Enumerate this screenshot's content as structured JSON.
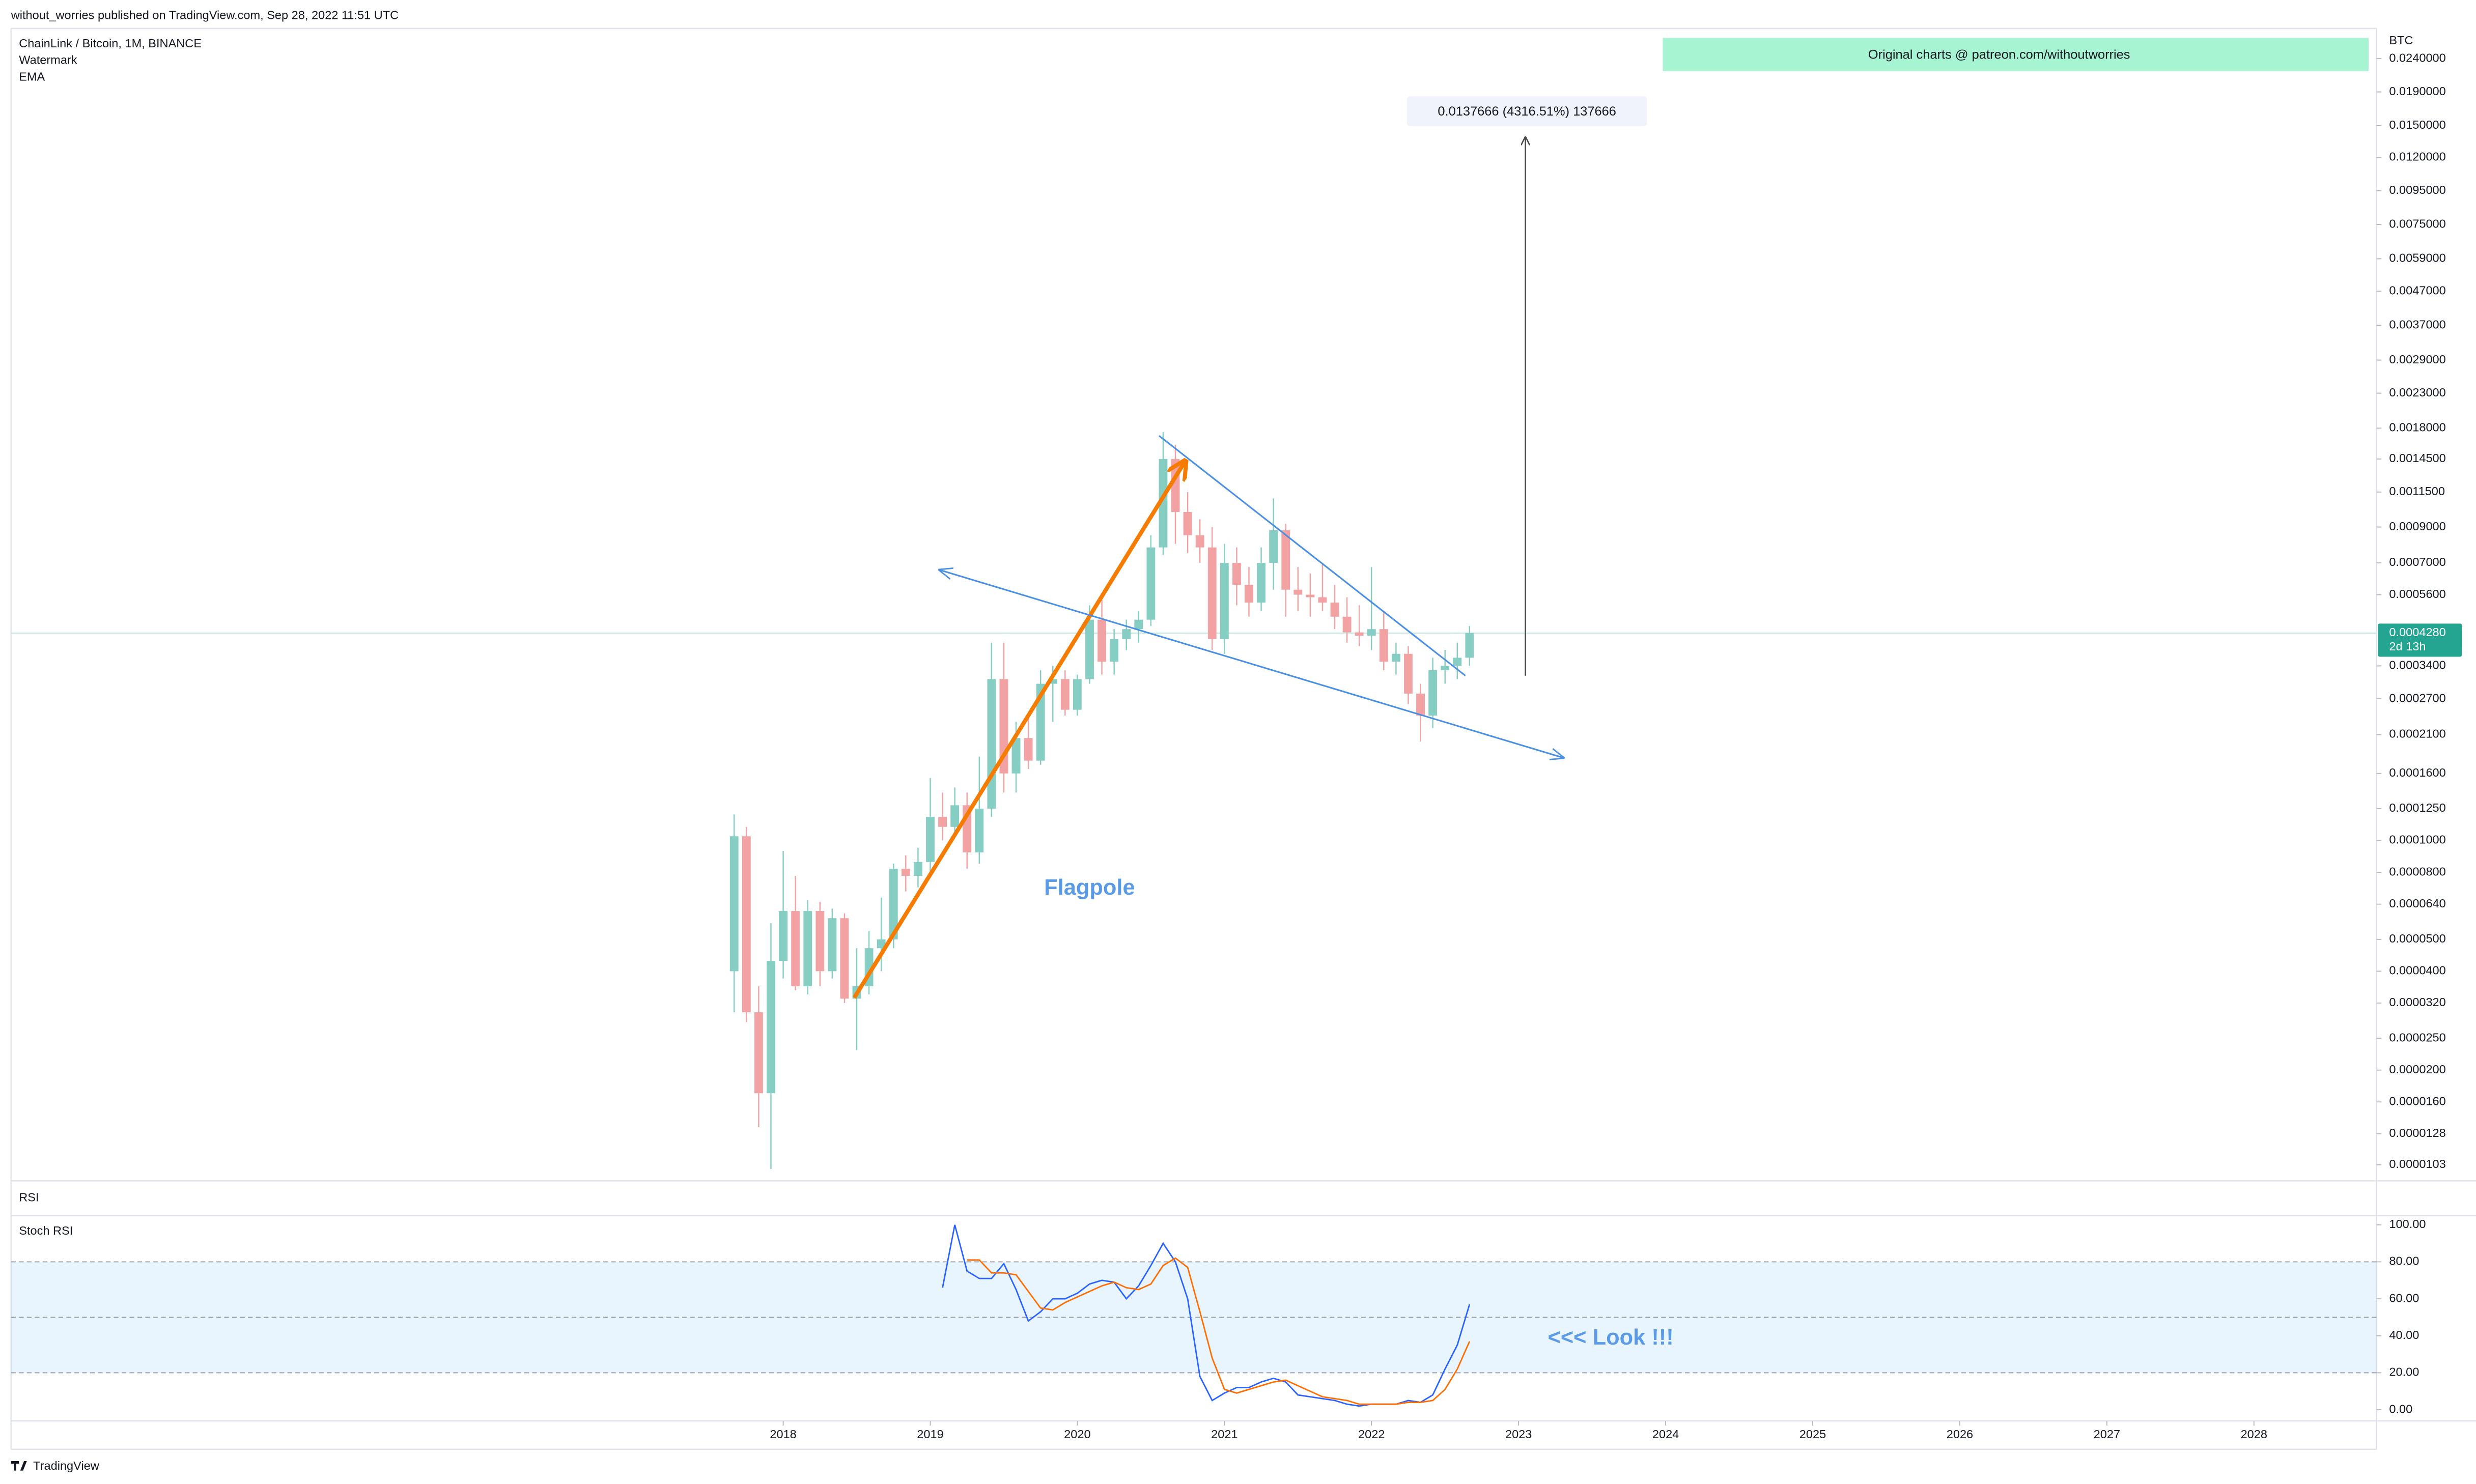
{
  "header": {
    "publisher": "without_worries published on TradingView.com, Sep 28, 2022 11:51 UTC",
    "footer": "TradingView"
  },
  "chart_data": [
    {
      "type": "candlestick",
      "title": "ChainLink / Bitcoin, 1M, BINANCE",
      "indicators": [
        "Watermark",
        "EMA"
      ],
      "axis_label": "BTC",
      "x": [
        "2017-09",
        "2017-10",
        "2017-11",
        "2017-12",
        "2018-01",
        "2018-02",
        "2018-03",
        "2018-04",
        "2018-05",
        "2018-06",
        "2018-07",
        "2018-08",
        "2018-09",
        "2018-10",
        "2018-11",
        "2018-12",
        "2019-01",
        "2019-02",
        "2019-03",
        "2019-04",
        "2019-05",
        "2019-06",
        "2019-07",
        "2019-08",
        "2019-09",
        "2019-10",
        "2019-11",
        "2019-12",
        "2020-01",
        "2020-02",
        "2020-03",
        "2020-04",
        "2020-05",
        "2020-06",
        "2020-07",
        "2020-08",
        "2020-09",
        "2020-10",
        "2020-11",
        "2020-12",
        "2021-01",
        "2021-02",
        "2021-03",
        "2021-04",
        "2021-05",
        "2021-06",
        "2021-07",
        "2021-08",
        "2021-09",
        "2021-10",
        "2021-11",
        "2021-12",
        "2022-01",
        "2022-02",
        "2022-03",
        "2022-04",
        "2022-05",
        "2022-06",
        "2022-07",
        "2022-08",
        "2022-09"
      ],
      "open": [
        4e-05,
        0.000103,
        3e-05,
        1.7e-05,
        4.3e-05,
        6.1e-05,
        3.6e-05,
        6.1e-05,
        4e-05,
        5.8e-05,
        3.3e-05,
        3.6e-05,
        4.7e-05,
        5e-05,
        8.2e-05,
        7.8e-05,
        8.6e-05,
        0.000118,
        0.00011,
        0.000128,
        9.2e-05,
        0.000125,
        0.00031,
        0.00016,
        0.000205,
        0.000175,
        0.0003,
        0.00031,
        0.00025,
        0.00031,
        0.00047,
        0.00035,
        0.00041,
        0.00044,
        0.00047,
        0.00078,
        0.00145,
        0.001,
        0.00085,
        0.00078,
        0.00041,
        0.0007,
        0.0006,
        0.00053,
        0.0007,
        0.00088,
        0.00058,
        0.00056,
        0.00055,
        0.00053,
        0.00048,
        0.00043,
        0.00042,
        0.00044,
        0.00035,
        0.00037,
        0.00028,
        0.00024,
        0.00033,
        0.00034,
        0.00036
      ],
      "high": [
        0.00012,
        0.00011,
        3.6e-05,
        5.6e-05,
        9.3e-05,
        7.8e-05,
        6.6e-05,
        6.5e-05,
        6.2e-05,
        6e-05,
        4.7e-05,
        5.3e-05,
        6.7e-05,
        8.5e-05,
        9e-05,
        9.5e-05,
        0.000155,
        0.00014,
        0.000145,
        0.00014,
        0.00018,
        0.0004,
        0.0004,
        0.00023,
        0.000235,
        0.00033,
        0.00034,
        0.00033,
        0.00032,
        0.00052,
        0.00054,
        0.00044,
        0.00047,
        0.0005,
        0.00085,
        0.00175,
        0.0016,
        0.00115,
        0.00095,
        0.0009,
        0.0008,
        0.00078,
        0.00068,
        0.00078,
        0.0011,
        0.00092,
        0.00068,
        0.00065,
        0.0007,
        0.0006,
        0.00055,
        0.00052,
        0.00068,
        0.0005,
        0.0004,
        0.00039,
        0.0003,
        0.00036,
        0.00038,
        0.0004,
        0.00045
      ],
      "low": [
        3e-05,
        2.8e-05,
        1.34e-05,
        1e-05,
        3.8e-05,
        3.5e-05,
        3.4e-05,
        3.6e-05,
        3.8e-05,
        3.2e-05,
        2.3e-05,
        3.4e-05,
        4e-05,
        4.7e-05,
        7e-05,
        7.2e-05,
        8e-05,
        0.0001,
        0.000105,
        8.2e-05,
        8.5e-05,
        0.000118,
        0.00014,
        0.00014,
        0.000165,
        0.00017,
        0.00023,
        0.00024,
        0.00024,
        0.0003,
        0.00032,
        0.00032,
        0.00038,
        0.0004,
        0.00045,
        0.00074,
        0.0008,
        0.00075,
        0.0007,
        0.00038,
        0.00037,
        0.00052,
        0.00048,
        0.0005,
        0.00058,
        0.00048,
        0.0005,
        0.00048,
        0.0005,
        0.00044,
        0.0004,
        0.00039,
        0.00038,
        0.00033,
        0.00032,
        0.00026,
        0.0002,
        0.00022,
        0.0003,
        0.00031,
        0.00034
      ],
      "close": [
        0.000103,
        3e-05,
        1.7e-05,
        4.3e-05,
        6.1e-05,
        3.6e-05,
        6.1e-05,
        4e-05,
        5.8e-05,
        3.3e-05,
        3.6e-05,
        4.7e-05,
        5e-05,
        8.2e-05,
        7.8e-05,
        8.6e-05,
        0.000118,
        0.00011,
        0.000128,
        9.2e-05,
        0.000125,
        0.00031,
        0.00016,
        0.000205,
        0.000175,
        0.0003,
        0.00031,
        0.00025,
        0.00031,
        0.00047,
        0.00035,
        0.00041,
        0.00044,
        0.00047,
        0.00078,
        0.00145,
        0.001,
        0.00085,
        0.00078,
        0.00041,
        0.0007,
        0.0006,
        0.00053,
        0.0007,
        0.00088,
        0.00058,
        0.00056,
        0.00055,
        0.00053,
        0.00048,
        0.00043,
        0.00042,
        0.00044,
        0.00035,
        0.00037,
        0.00028,
        0.00024,
        0.00033,
        0.00034,
        0.00036,
        0.000428
      ],
      "up_color": "#86cec3",
      "down_color": "#f2a2a2",
      "log_scale": true,
      "ylim": [
        9.2e-06,
        0.029
      ],
      "yticks": [
        {
          "value": 0.024,
          "label": "0.0240000"
        },
        {
          "value": 0.019,
          "label": "0.0190000"
        },
        {
          "value": 0.015,
          "label": "0.0150000"
        },
        {
          "value": 0.012,
          "label": "0.0120000"
        },
        {
          "value": 0.0095,
          "label": "0.0095000"
        },
        {
          "value": 0.0075,
          "label": "0.0075000"
        },
        {
          "value": 0.0059,
          "label": "0.0059000"
        },
        {
          "value": 0.0047,
          "label": "0.0047000"
        },
        {
          "value": 0.0037,
          "label": "0.0037000"
        },
        {
          "value": 0.0029,
          "label": "0.0029000"
        },
        {
          "value": 0.0023,
          "label": "0.0023000"
        },
        {
          "value": 0.0018,
          "label": "0.0018000"
        },
        {
          "value": 0.00145,
          "label": "0.0014500"
        },
        {
          "value": 0.00115,
          "label": "0.0011500"
        },
        {
          "value": 0.0009,
          "label": "0.0009000"
        },
        {
          "value": 0.0007,
          "label": "0.0007000"
        },
        {
          "value": 0.00056,
          "label": "0.0005600"
        },
        {
          "value": 0.00034,
          "label": "0.0003400"
        },
        {
          "value": 0.00027,
          "label": "0.0002700"
        },
        {
          "value": 0.00021,
          "label": "0.0002100"
        },
        {
          "value": 0.00016,
          "label": "0.0001600"
        },
        {
          "value": 0.000125,
          "label": "0.0001250"
        },
        {
          "value": 0.0001,
          "label": "0.0001000"
        },
        {
          "value": 8e-05,
          "label": "0.0000800"
        },
        {
          "value": 6.4e-05,
          "label": "0.0000640"
        },
        {
          "value": 5e-05,
          "label": "0.0000500"
        },
        {
          "value": 4e-05,
          "label": "0.0000400"
        },
        {
          "value": 3.2e-05,
          "label": "0.0000320"
        },
        {
          "value": 2.5e-05,
          "label": "0.0000250"
        },
        {
          "value": 2e-05,
          "label": "0.0000200"
        },
        {
          "value": 1.6e-05,
          "label": "0.0000160"
        },
        {
          "value": 1.28e-05,
          "label": "0.0000128"
        },
        {
          "value": 1.03e-05,
          "label": "0.0000103"
        }
      ],
      "xlim": [
        "2012-10",
        "2028-11"
      ],
      "xticks": [
        "2018",
        "2019",
        "2020",
        "2021",
        "2022",
        "2023",
        "2024",
        "2025",
        "2026",
        "2027",
        "2028"
      ],
      "grid": false,
      "last_price": {
        "value": 0.000428,
        "label": "0.0004280"
      },
      "countdown": "2d 13h",
      "annotations": {
        "banner": "Original charts @ patreon.com/withoutworries",
        "measure": "0.0137666 (4316.51%) 137666",
        "flagpole": "Flagpole"
      }
    },
    {
      "type": "line",
      "title": "RSI"
    },
    {
      "type": "line",
      "title": "Stoch RSI",
      "series": [
        {
          "name": "K",
          "color": "#2962ff",
          "values": [
            null,
            null,
            null,
            null,
            null,
            null,
            null,
            null,
            null,
            null,
            null,
            null,
            null,
            null,
            null,
            null,
            null,
            66,
            100,
            75,
            71,
            71,
            79,
            65,
            48,
            53,
            60,
            60,
            63,
            68,
            70,
            69,
            60,
            67,
            78,
            90,
            80,
            60,
            18,
            5,
            9,
            12,
            12,
            15,
            17,
            15,
            8,
            7,
            6,
            5,
            3,
            2,
            3,
            3,
            3,
            5,
            4,
            8,
            22,
            35,
            57
          ]
        },
        {
          "name": "D",
          "color": "#ff6d00",
          "values": [
            null,
            null,
            null,
            null,
            null,
            null,
            null,
            null,
            null,
            null,
            null,
            null,
            null,
            null,
            null,
            null,
            null,
            null,
            null,
            81,
            81,
            74,
            74,
            73,
            64,
            55,
            54,
            58,
            61,
            64,
            67,
            69,
            66,
            65,
            68,
            78,
            82,
            77,
            53,
            28,
            11,
            9,
            11,
            13,
            15,
            16,
            13,
            10,
            7,
            6,
            5,
            3,
            3,
            3,
            3,
            4,
            4,
            5,
            11,
            22,
            37
          ]
        }
      ],
      "bands": {
        "upper": 80,
        "middle": 50,
        "lower": 20
      },
      "ylim": [
        -6,
        105
      ],
      "yticks": [
        {
          "value": 100,
          "label": "100.00"
        },
        {
          "value": 80,
          "label": "80.00"
        },
        {
          "value": 60,
          "label": "60.00"
        },
        {
          "value": 40,
          "label": "40.00"
        },
        {
          "value": 20,
          "label": "20.00"
        },
        {
          "value": 0,
          "label": "0.00"
        }
      ],
      "annotation": "<<< Look !!!"
    }
  ]
}
